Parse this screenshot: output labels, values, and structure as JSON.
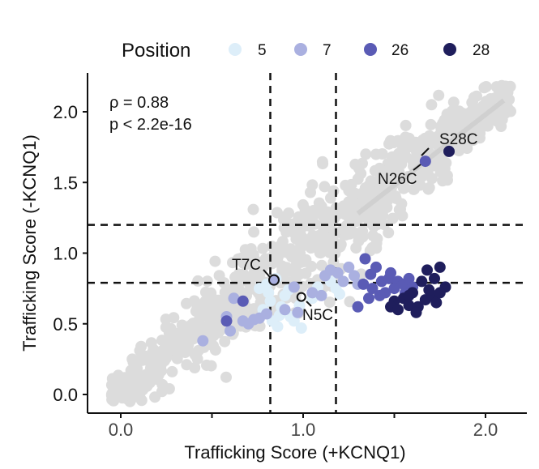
{
  "chart_data": {
    "type": "scatter",
    "xlabel": "Trafficking Score (+KCNQ1)",
    "ylabel": "Trafficking Score (-KCNQ1)",
    "xlim": [
      -0.1,
      2.2
    ],
    "ylim": [
      -0.1,
      2.3
    ],
    "x_ticks": [
      0.0,
      0.5,
      1.0,
      1.5,
      2.0
    ],
    "x_tick_labels": [
      "0.0",
      "",
      "1.0",
      "",
      "2.0"
    ],
    "y_ticks": [
      0.0,
      0.5,
      1.0,
      1.5,
      2.0
    ],
    "y_tick_labels": [
      "0.0",
      "0.5",
      "1.0",
      "1.5",
      "2.0"
    ],
    "grid": false,
    "legend": {
      "title": "Position",
      "placement": "top",
      "entries": [
        {
          "label": "5",
          "color": "#ddeef9"
        },
        {
          "label": "7",
          "color": "#aab0e0"
        },
        {
          "label": "26",
          "color": "#5a5bb5"
        },
        {
          "label": "28",
          "color": "#1f1e5c"
        }
      ]
    },
    "stats": {
      "rho": "ρ = 0.88",
      "p": "p < 2.2e-16"
    },
    "reference_lines": {
      "vertical_x": [
        0.82,
        1.18
      ],
      "horizontal_y": [
        0.79,
        1.2
      ]
    },
    "background_color": "#dcdcdc",
    "series": [
      {
        "name": "5",
        "color": "#ddeef9",
        "points": [
          [
            0.85,
            0.82
          ],
          [
            0.8,
            0.78
          ],
          [
            0.9,
            0.7
          ],
          [
            0.88,
            0.62
          ],
          [
            0.82,
            0.66
          ],
          [
            0.93,
            0.55
          ],
          [
            0.95,
            0.52
          ],
          [
            0.87,
            0.56
          ],
          [
            0.78,
            0.6
          ],
          [
            0.98,
            0.63
          ],
          [
            0.92,
            0.74
          ],
          [
            1.05,
            0.68
          ],
          [
            1.18,
            0.75
          ],
          [
            1.2,
            0.71
          ],
          [
            1.15,
            0.8
          ],
          [
            0.76,
            0.75
          ],
          [
            0.83,
            0.52
          ],
          [
            0.99,
            0.47
          ],
          [
            0.86,
            0.48
          ],
          [
            1.08,
            0.76
          ],
          [
            0.81,
            0.72
          ]
        ]
      },
      {
        "name": "7",
        "color": "#aab0e0",
        "points": [
          [
            0.84,
            0.81
          ],
          [
            0.62,
            0.68
          ],
          [
            0.58,
            0.55
          ],
          [
            0.73,
            0.53
          ],
          [
            0.7,
            0.5
          ],
          [
            0.76,
            0.54
          ],
          [
            0.8,
            0.57
          ],
          [
            0.9,
            0.6
          ],
          [
            0.97,
            0.58
          ],
          [
            1.05,
            0.72
          ],
          [
            1.12,
            0.84
          ],
          [
            1.19,
            0.86
          ],
          [
            1.25,
            0.9
          ],
          [
            1.28,
            0.84
          ],
          [
            1.3,
            0.78
          ],
          [
            1.22,
            0.8
          ],
          [
            0.45,
            0.38
          ],
          [
            0.6,
            0.45
          ],
          [
            0.67,
            0.52
          ],
          [
            1.1,
            0.7
          ],
          [
            0.95,
            0.76
          ],
          [
            1.15,
            0.88
          ]
        ]
      },
      {
        "name": "26",
        "color": "#5a5bb5",
        "points": [
          [
            1.67,
            1.65
          ],
          [
            1.34,
            0.96
          ],
          [
            1.4,
            0.9
          ],
          [
            1.37,
            0.85
          ],
          [
            1.43,
            0.8
          ],
          [
            1.47,
            0.82
          ],
          [
            1.52,
            0.8
          ],
          [
            1.55,
            0.78
          ],
          [
            1.58,
            0.82
          ],
          [
            1.6,
            0.76
          ],
          [
            1.45,
            0.72
          ],
          [
            1.38,
            0.75
          ],
          [
            1.33,
            0.78
          ],
          [
            1.3,
            0.62
          ],
          [
            1.42,
            0.7
          ],
          [
            1.5,
            0.75
          ],
          [
            1.48,
            0.86
          ],
          [
            0.67,
            0.66
          ],
          [
            0.58,
            0.52
          ],
          [
            1.56,
            0.72
          ],
          [
            1.36,
            0.68
          ]
        ]
      },
      {
        "name": "28",
        "color": "#1f1e5c",
        "points": [
          [
            1.8,
            1.72
          ],
          [
            1.68,
            0.88
          ],
          [
            1.75,
            0.9
          ],
          [
            1.72,
            0.82
          ],
          [
            1.78,
            0.76
          ],
          [
            1.65,
            0.8
          ],
          [
            1.6,
            0.72
          ],
          [
            1.55,
            0.68
          ],
          [
            1.5,
            0.66
          ],
          [
            1.48,
            0.62
          ],
          [
            1.52,
            0.6
          ],
          [
            1.58,
            0.63
          ],
          [
            1.63,
            0.62
          ],
          [
            1.67,
            0.67
          ],
          [
            1.71,
            0.7
          ],
          [
            1.73,
            0.65
          ],
          [
            1.69,
            0.74
          ],
          [
            1.75,
            0.72
          ],
          [
            1.58,
            0.7
          ],
          [
            1.62,
            0.58
          ]
        ]
      }
    ],
    "annotations": [
      {
        "label": "S28C",
        "x": 1.8,
        "y": 1.72
      },
      {
        "label": "N26C",
        "x": 1.67,
        "y": 1.65
      },
      {
        "label": "T7C",
        "x": 0.84,
        "y": 0.81
      },
      {
        "label": "N5C",
        "x": 0.99,
        "y": 0.69
      }
    ]
  }
}
